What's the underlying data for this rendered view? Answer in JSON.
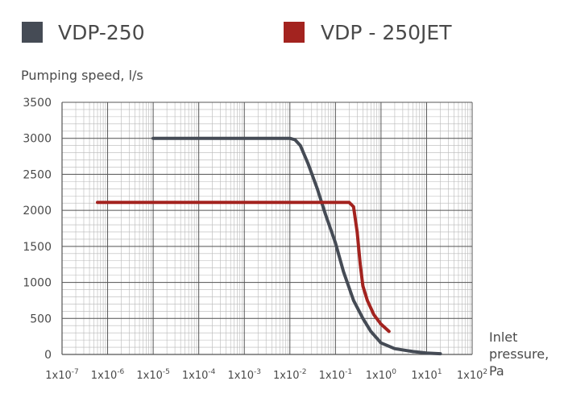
{
  "chart_data": {
    "type": "line",
    "xscale": "log",
    "xlim": [
      "1e-7",
      "1e2"
    ],
    "ylim": [
      0,
      3500
    ],
    "yticks": [
      0,
      500,
      1000,
      1500,
      2000,
      2500,
      3000,
      3500
    ],
    "xtick_labels": [
      {
        "base": "1x10",
        "exp": "-7"
      },
      {
        "base": "1x10",
        "exp": "-6"
      },
      {
        "base": "1x10",
        "exp": "-5"
      },
      {
        "base": "1x10",
        "exp": "-4"
      },
      {
        "base": "1x10",
        "exp": "-3"
      },
      {
        "base": "1x10",
        "exp": "-2"
      },
      {
        "base": "1x10",
        "exp": "-1"
      },
      {
        "base": "1x10",
        "exp": "0"
      },
      {
        "base": "1x10",
        "exp": "1"
      },
      {
        "base": "1x10",
        "exp": "2"
      }
    ],
    "ylabel": "Pumping speed, l/s",
    "xlabel_lines": [
      "Inlet",
      "pressure,",
      "Pa"
    ],
    "grid": true,
    "legend_position": "top",
    "series": [
      {
        "name": "VDP-250",
        "color": "#454b55",
        "x": [
          "1e-5",
          "1e-4",
          "1e-3",
          "1e-2",
          "1.3e-2",
          "1.7e-2",
          "2.5e-2",
          "4e-2",
          "6e-2",
          "0.1",
          "0.15",
          "0.25",
          "0.4",
          "0.6",
          "1",
          "2",
          "5",
          "10",
          "20"
        ],
        "y": [
          3000,
          3000,
          3000,
          3000,
          2980,
          2900,
          2650,
          2300,
          1950,
          1550,
          1150,
          750,
          500,
          320,
          160,
          80,
          40,
          20,
          10
        ]
      },
      {
        "name": "VDP - 250JET",
        "color": "#a3231f",
        "x": [
          "6e-7",
          "1e-6",
          "1e-5",
          "1e-4",
          "1e-3",
          "1e-2",
          "0.1",
          "0.2",
          "0.25",
          "0.3",
          "0.35",
          "0.4",
          "0.5",
          "0.7",
          "1",
          "1.5"
        ],
        "y": [
          2110,
          2110,
          2110,
          2110,
          2110,
          2110,
          2110,
          2110,
          2050,
          1700,
          1250,
          950,
          750,
          550,
          420,
          320
        ]
      }
    ]
  }
}
